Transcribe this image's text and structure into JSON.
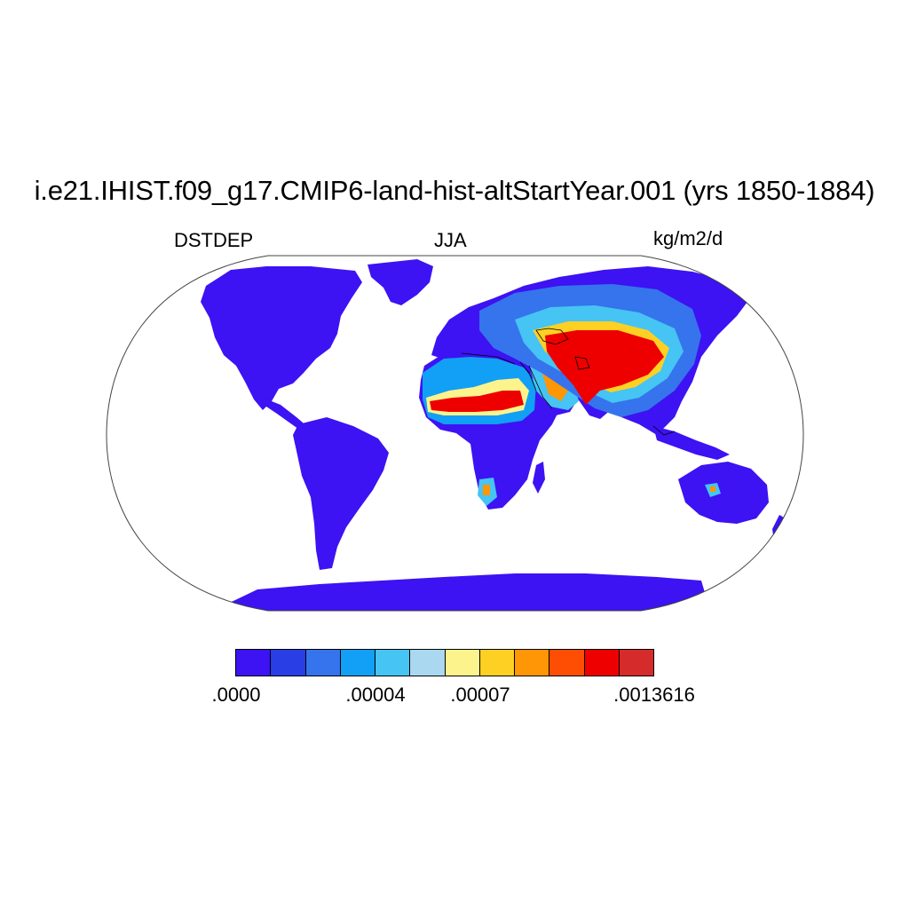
{
  "title": "i.e21.IHIST.f09_g17.CMIP6-land-hist-altStartYear.001 (yrs 1850-1884)",
  "variable": "DSTDEP",
  "season": "JJA",
  "units": "kg/m2/d",
  "colorbar": {
    "colors": [
      "#3d12f3",
      "#2a3ee6",
      "#3574ec",
      "#11a0f5",
      "#46c4f3",
      "#a9d8f0",
      "#fdf38c",
      "#fdd023",
      "#fe9605",
      "#fe4e04",
      "#ee0000",
      "#d62b2b"
    ],
    "labels": [
      ".0000",
      ".00004",
      ".00007",
      ".0013616"
    ]
  },
  "colors": {
    "land_low": "#3d12f3",
    "ocean": "#ffffff",
    "coast": "#000000",
    "frame": "#444444"
  }
}
